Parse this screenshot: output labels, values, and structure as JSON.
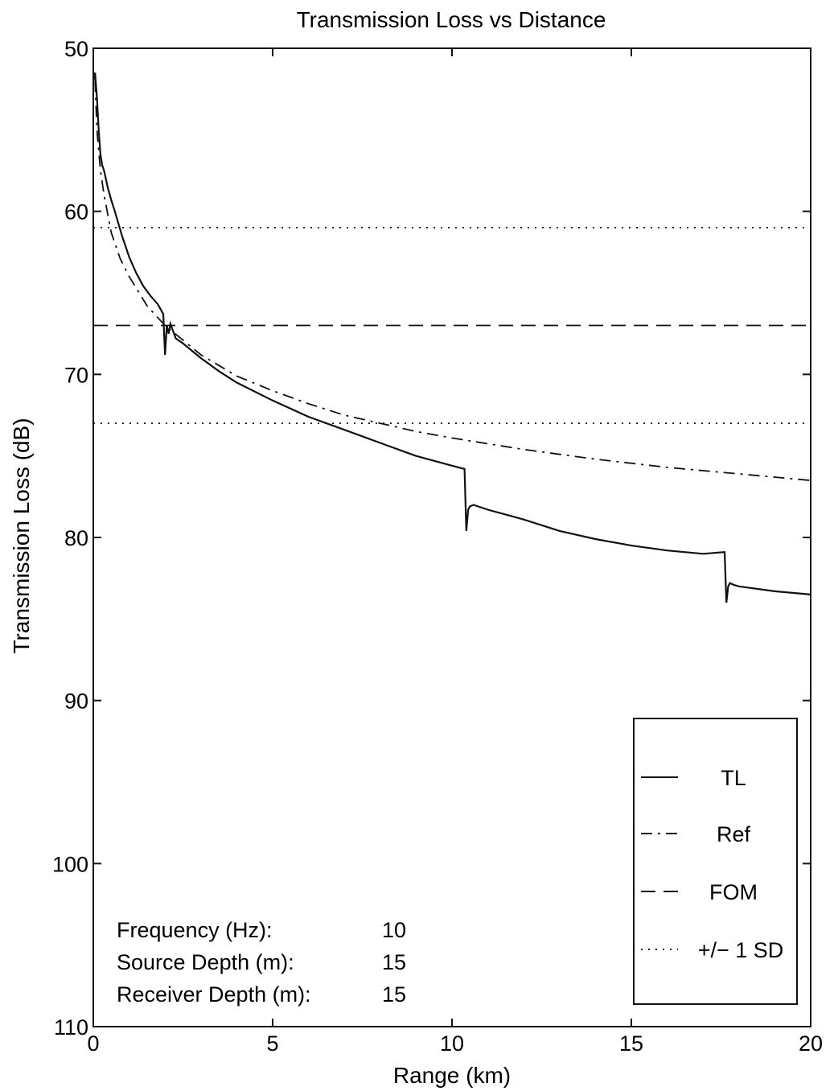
{
  "chart_data": {
    "type": "line",
    "title": "Transmission Loss vs Distance",
    "xlabel": "Range (km)",
    "ylabel": "Transmission Loss (dB)",
    "xlim": [
      0,
      20
    ],
    "ylim": [
      50,
      110
    ],
    "y_inverted": true,
    "x_ticks": [
      0,
      5,
      10,
      15,
      20
    ],
    "y_ticks": [
      50,
      60,
      70,
      80,
      90,
      100,
      110
    ],
    "grid": false,
    "legend_position": "lower-right",
    "series": [
      {
        "name": "TL",
        "style": "solid",
        "x": [
          0,
          0.05,
          0.1,
          0.15,
          0.2,
          0.25,
          0.3,
          0.4,
          0.5,
          0.6,
          0.8,
          1.0,
          1.2,
          1.4,
          1.6,
          1.8,
          1.95,
          2.0,
          2.05,
          2.1,
          2.15,
          2.3,
          2.5,
          3.0,
          3.5,
          4.0,
          5.0,
          6.0,
          7.0,
          8.0,
          9.0,
          10.0,
          10.35,
          10.4,
          10.45,
          10.5,
          10.6,
          11.0,
          12.0,
          13.0,
          14.0,
          15.0,
          16.0,
          17.0,
          17.6,
          17.65,
          17.7,
          17.75,
          17.85,
          18.0,
          19.0,
          20.0
        ],
        "values": [
          52.0,
          51.5,
          53.0,
          55.0,
          56.5,
          57.2,
          57.5,
          58.5,
          59.3,
          60.0,
          61.5,
          62.8,
          63.8,
          64.6,
          65.2,
          65.7,
          66.3,
          68.8,
          67.0,
          67.5,
          66.9,
          67.8,
          68.1,
          69.0,
          69.8,
          70.5,
          71.6,
          72.6,
          73.4,
          74.2,
          75.0,
          75.6,
          75.8,
          79.6,
          78.3,
          78.1,
          78.0,
          78.3,
          78.9,
          79.6,
          80.1,
          80.5,
          80.8,
          81.0,
          80.9,
          84.0,
          83.0,
          82.8,
          82.9,
          83.0,
          83.3,
          83.5
        ]
      },
      {
        "name": "Ref",
        "style": "dashdot",
        "x": [
          0.05,
          0.1,
          0.2,
          0.3,
          0.5,
          0.75,
          1.0,
          1.5,
          2.0,
          3.0,
          4.0,
          5.0,
          6.0,
          7.0,
          8.0,
          9.0,
          10.0,
          12.0,
          14.0,
          16.0,
          18.0,
          20.0
        ],
        "values": [
          52.0,
          55.0,
          57.5,
          59.0,
          61.3,
          62.9,
          64.0,
          65.8,
          67.0,
          68.8,
          70.1,
          71.0,
          71.8,
          72.5,
          73.0,
          73.5,
          73.9,
          74.6,
          75.2,
          75.7,
          76.1,
          76.5
        ]
      },
      {
        "name": "FOM",
        "style": "dashed",
        "x": [
          0,
          20
        ],
        "values": [
          67.0,
          67.0
        ]
      },
      {
        "name": "+/− 1 SD",
        "style": "dotted",
        "x": [
          0,
          20
        ],
        "values": [
          61.0,
          61.0
        ],
        "x2": [
          0,
          20
        ],
        "values2": [
          73.0,
          73.0
        ]
      }
    ],
    "annotations": [
      {
        "label": "Frequency (Hz):",
        "value": "10"
      },
      {
        "label": "Source Depth (m):",
        "value": "15"
      },
      {
        "label": "Receiver Depth (m):",
        "value": "15"
      }
    ]
  }
}
